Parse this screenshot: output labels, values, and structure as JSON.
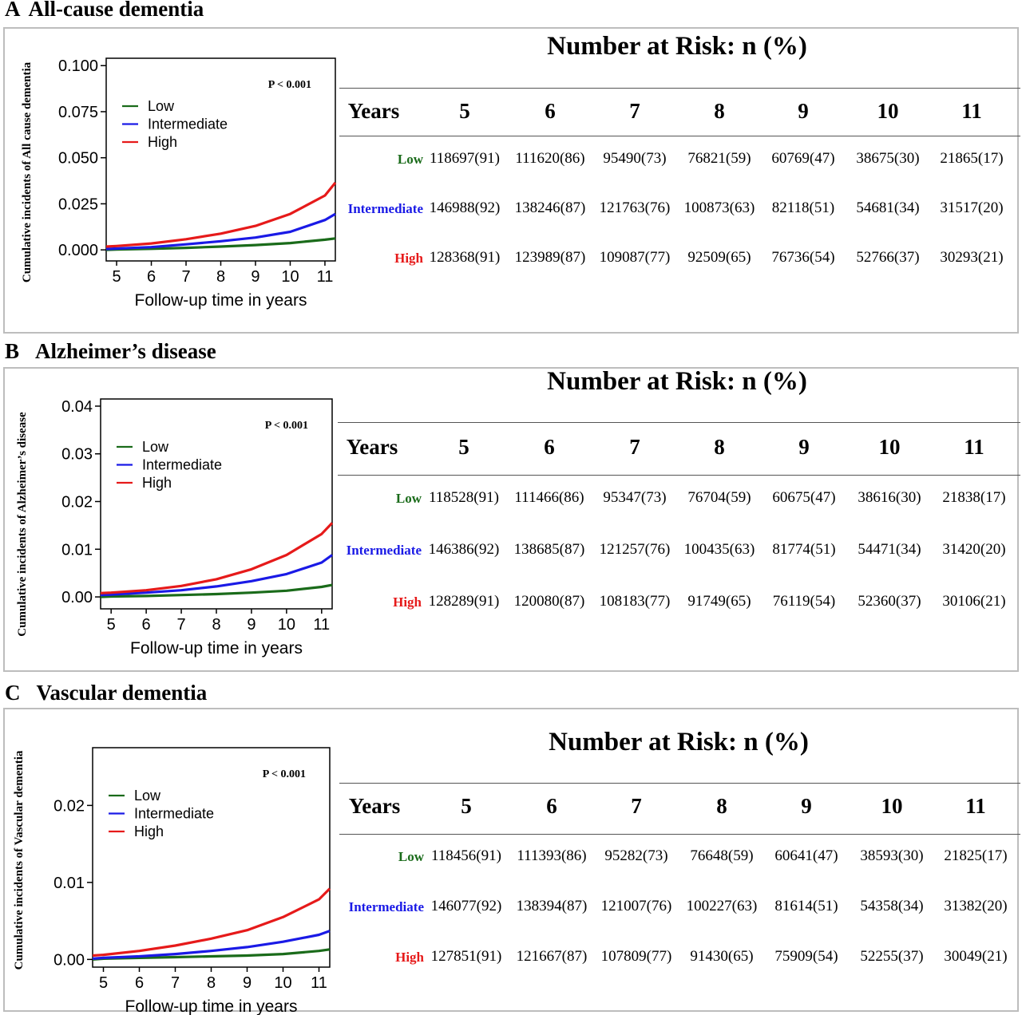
{
  "colors": {
    "low": "#1a6b1a",
    "intermediate": "#1a1ae6",
    "high": "#e61a1a",
    "border": "#bdbdbd"
  },
  "common": {
    "risk_title": "Number at Risk: n (%)",
    "years_label": "Years",
    "years": [
      "5",
      "6",
      "7",
      "8",
      "9",
      "10",
      "11"
    ],
    "groups": [
      "Low",
      "Intermediate",
      "High"
    ]
  },
  "panels": [
    {
      "letter": "A",
      "title": "All-cause dementia",
      "risk_rows": [
        [
          "118697(91)",
          "111620(86)",
          "95490(73)",
          "76821(59)",
          "60769(47)",
          "38675(30)",
          "21865(17)"
        ],
        [
          "146988(92)",
          "138246(87)",
          "121763(76)",
          "100873(63)",
          "82118(51)",
          "54681(34)",
          "31517(20)"
        ],
        [
          "128368(91)",
          "123989(87)",
          "109087(77)",
          "92509(65)",
          "76736(54)",
          "52766(37)",
          "30293(21)"
        ]
      ]
    },
    {
      "letter": "B",
      "title": "Alzheimer’s disease",
      "risk_rows": [
        [
          "118528(91)",
          "111466(86)",
          "95347(73)",
          "76704(59)",
          "60675(47)",
          "38616(30)",
          "21838(17)"
        ],
        [
          "146386(92)",
          "138685(87)",
          "121257(76)",
          "100435(63)",
          "81774(51)",
          "54471(34)",
          "31420(20)"
        ],
        [
          "128289(91)",
          "120080(87)",
          "108183(77)",
          "91749(65)",
          "76119(54)",
          "52360(37)",
          "30106(21)"
        ]
      ]
    },
    {
      "letter": "C",
      "title": "Vascular dementia",
      "risk_rows": [
        [
          "118456(91)",
          "111393(86)",
          "95282(73)",
          "76648(59)",
          "60641(47)",
          "38593(30)",
          "21825(17)"
        ],
        [
          "146077(92)",
          "138394(87)",
          "121007(76)",
          "100227(63)",
          "81614(51)",
          "54358(34)",
          "31382(20)"
        ],
        [
          "127851(91)",
          "121667(87)",
          "107809(77)",
          "91430(65)",
          "75909(54)",
          "52255(37)",
          "30049(21)"
        ]
      ]
    }
  ],
  "chart_data": [
    {
      "type": "line",
      "title": "",
      "xlabel": "Follow-up time in years",
      "ylabel": "Cumulative incidents of All cause dementia",
      "annotation": "P < 0.001",
      "xlim": [
        4.7,
        11.3
      ],
      "ylim": [
        -0.006,
        0.104
      ],
      "xticks": [
        5,
        6,
        7,
        8,
        9,
        10,
        11
      ],
      "yticks": [
        "0.000",
        "0.025",
        "0.050",
        "0.075",
        "0.100"
      ],
      "ytick_values": [
        0,
        0.025,
        0.05,
        0.075,
        0.1
      ],
      "legend_position": "top-left",
      "x": [
        4.7,
        5,
        6,
        7,
        8,
        9,
        10,
        11,
        11.3
      ],
      "series": [
        {
          "name": "Low",
          "color": "#1a6b1a",
          "values": [
            0.0,
            0.0002,
            0.0006,
            0.0011,
            0.0018,
            0.0026,
            0.0037,
            0.0055,
            0.0062
          ]
        },
        {
          "name": "Intermediate",
          "color": "#1a1ae6",
          "values": [
            0.0005,
            0.0007,
            0.0015,
            0.003,
            0.0047,
            0.0067,
            0.0098,
            0.0162,
            0.0195
          ]
        },
        {
          "name": "High",
          "color": "#e61a1a",
          "values": [
            0.0018,
            0.0021,
            0.0035,
            0.0058,
            0.0088,
            0.013,
            0.0195,
            0.0295,
            0.0365
          ]
        }
      ]
    },
    {
      "type": "line",
      "title": "",
      "xlabel": "Follow-up time in years",
      "ylabel": "Cumulative incidents of Alzheimer’s disease",
      "annotation": "P < 0.001",
      "xlim": [
        4.7,
        11.3
      ],
      "ylim": [
        -0.0025,
        0.0415
      ],
      "xticks": [
        5,
        6,
        7,
        8,
        9,
        10,
        11
      ],
      "yticks": [
        "0.00",
        "0.01",
        "0.02",
        "0.03",
        "0.04"
      ],
      "ytick_values": [
        0,
        0.01,
        0.02,
        0.03,
        0.04
      ],
      "legend_position": "top-left",
      "x": [
        4.7,
        5,
        6,
        7,
        8,
        9,
        10,
        11,
        11.3
      ],
      "series": [
        {
          "name": "Low",
          "color": "#1a6b1a",
          "values": [
            0.0,
            0.0001,
            0.0002,
            0.0004,
            0.0006,
            0.0009,
            0.0013,
            0.0021,
            0.0025
          ]
        },
        {
          "name": "Intermediate",
          "color": "#1a1ae6",
          "values": [
            0.0004,
            0.0005,
            0.0009,
            0.0014,
            0.0022,
            0.0033,
            0.0048,
            0.0072,
            0.0088
          ]
        },
        {
          "name": "High",
          "color": "#e61a1a",
          "values": [
            0.0008,
            0.0009,
            0.0014,
            0.0023,
            0.0037,
            0.0058,
            0.0088,
            0.0132,
            0.0155
          ]
        }
      ]
    },
    {
      "type": "line",
      "title": "",
      "xlabel": "Follow-up time in years",
      "ylabel": "Cumulative incidents of Vascular dementia",
      "annotation": "P < 0.001",
      "xlim": [
        4.7,
        11.3
      ],
      "ylim": [
        -0.001,
        0.0275
      ],
      "xticks": [
        5,
        6,
        7,
        8,
        9,
        10,
        11
      ],
      "yticks": [
        "0.00",
        "0.01",
        "0.02"
      ],
      "ytick_values": [
        0,
        0.01,
        0.02
      ],
      "legend_position": "top-left",
      "x": [
        4.7,
        5,
        6,
        7,
        8,
        9,
        10,
        11,
        11.3
      ],
      "series": [
        {
          "name": "Low",
          "color": "#1a6b1a",
          "values": [
            0.0,
            0.0001,
            0.0002,
            0.0003,
            0.0004,
            0.0005,
            0.0007,
            0.0011,
            0.0013
          ]
        },
        {
          "name": "Intermediate",
          "color": "#1a1ae6",
          "values": [
            0.0001,
            0.0002,
            0.0004,
            0.0007,
            0.0011,
            0.0016,
            0.0023,
            0.0032,
            0.0037
          ]
        },
        {
          "name": "High",
          "color": "#e61a1a",
          "values": [
            0.0005,
            0.0006,
            0.0011,
            0.0018,
            0.0027,
            0.0038,
            0.0055,
            0.0078,
            0.0092
          ]
        }
      ]
    }
  ]
}
